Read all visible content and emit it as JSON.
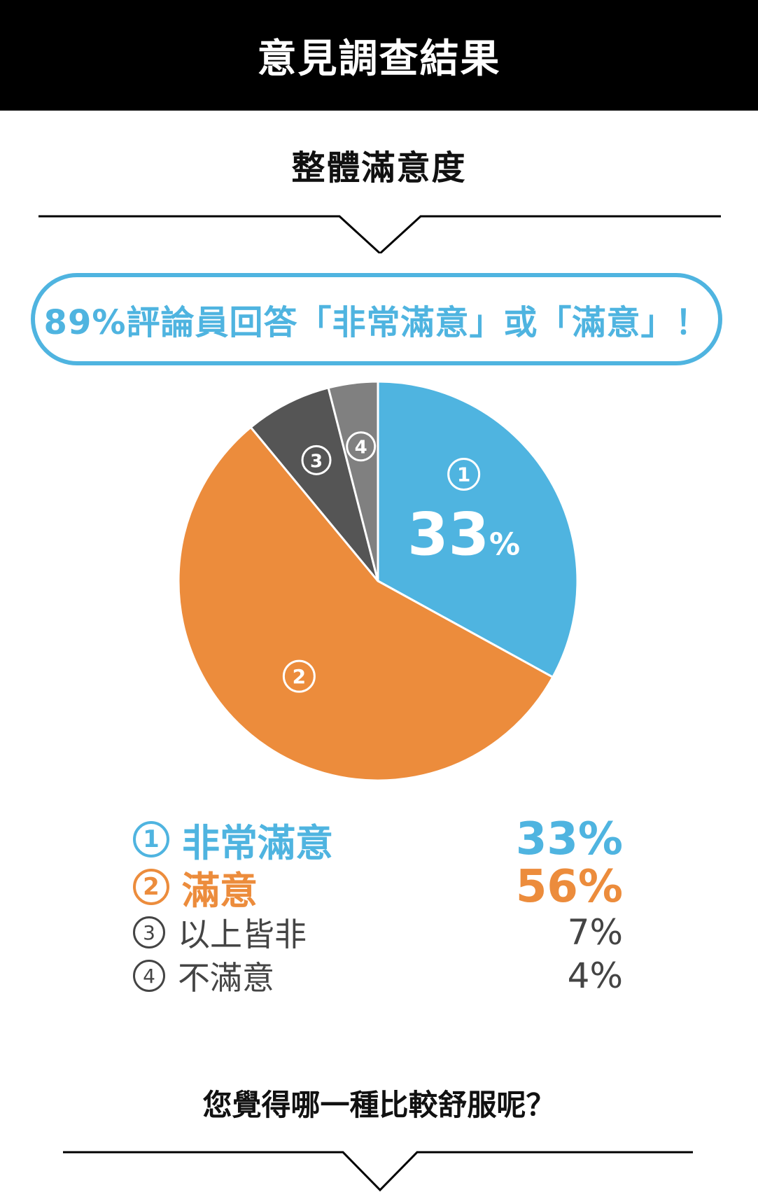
{
  "header": {
    "title": "意見調查結果"
  },
  "subtitle": "整體滿意度",
  "banner": "89%評論員回答「非常滿意」或「滿意」！",
  "question": "您覺得哪一種比較舒服呢？",
  "colors": {
    "blue": "#4fb4e0",
    "orange": "#ec8c3c",
    "dark_gray": "#555555",
    "gray": "#808080",
    "legend_gray": "#444444"
  },
  "chart_data": {
    "type": "pie",
    "title": "整體滿意度",
    "slices": [
      {
        "marker": "①",
        "label": "非常滿意",
        "value": 33,
        "value_text": "33%",
        "color": "#4fb4e0",
        "slice_label": "33%"
      },
      {
        "marker": "②",
        "label": "滿意",
        "value": 56,
        "value_text": "56%",
        "color": "#ec8c3c"
      },
      {
        "marker": "③",
        "label": "以上皆非",
        "value": 7,
        "value_text": "7%",
        "color": "#555555"
      },
      {
        "marker": "④",
        "label": "不滿意",
        "value": 4,
        "value_text": "4%",
        "color": "#808080"
      }
    ]
  }
}
